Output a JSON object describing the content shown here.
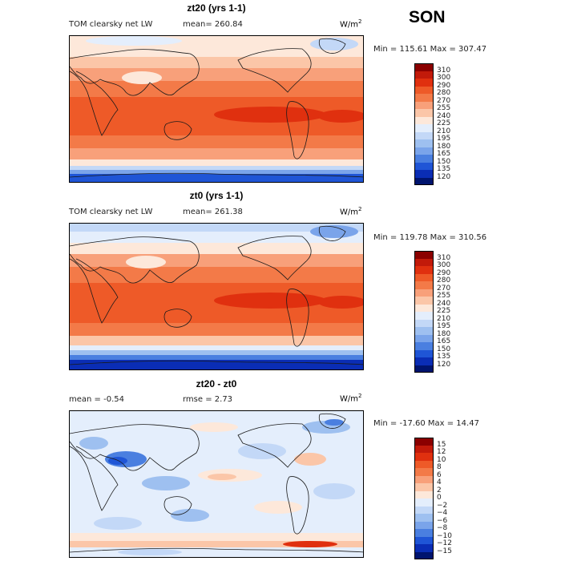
{
  "season": "SON",
  "units": {
    "text": "W/m",
    "sup": "2"
  },
  "palette": {
    "anom_land": "#9ec0f0",
    "coast": "#1a1a1a"
  },
  "panels": [
    {
      "title": "zt20 (yrs 1-1)",
      "variable": "TOM clearsky net LW",
      "stat1": "mean=  260.84",
      "stat2": "",
      "minmax": "Min = 115.61 Max = 307.47",
      "type": "absolute",
      "levels": [
        "310",
        "300",
        "290",
        "280",
        "270",
        "255",
        "240",
        "225",
        "210",
        "195",
        "180",
        "165",
        "150",
        "135",
        "120"
      ],
      "colors": [
        "#8b0000",
        "#c21a0a",
        "#e0300f",
        "#ee5a28",
        "#f37a48",
        "#f8a07a",
        "#fbc6a8",
        "#fde8da",
        "#e4eefc",
        "#c3d8f7",
        "#9ec0f0",
        "#7aa4ea",
        "#4a7fe0",
        "#1f55d6",
        "#0a2db5",
        "#00146e"
      ]
    },
    {
      "title": "zt0 (yrs 1-1)",
      "variable": "TOM clearsky net LW",
      "stat1": "mean=  261.38",
      "stat2": "",
      "minmax": "Min = 119.78 Max = 310.56",
      "type": "absolute",
      "levels": [
        "310",
        "300",
        "290",
        "280",
        "270",
        "255",
        "240",
        "225",
        "210",
        "195",
        "180",
        "165",
        "150",
        "135",
        "120"
      ],
      "colors": [
        "#8b0000",
        "#c21a0a",
        "#e0300f",
        "#ee5a28",
        "#f37a48",
        "#f8a07a",
        "#fbc6a8",
        "#fde8da",
        "#e4eefc",
        "#c3d8f7",
        "#9ec0f0",
        "#7aa4ea",
        "#4a7fe0",
        "#1f55d6",
        "#0a2db5",
        "#00146e"
      ]
    },
    {
      "title": "zt20 - zt0",
      "variable": "mean =   -0.54",
      "stat1": "rmse =    2.73",
      "stat2": "",
      "minmax": "Min = -17.60 Max =  14.47",
      "type": "difference",
      "levels": [
        "15",
        "12",
        "10",
        "8",
        "6",
        "4",
        "2",
        "0",
        "−2",
        "−4",
        "−6",
        "−8",
        "−10",
        "−12",
        "−15"
      ],
      "colors": [
        "#8b0000",
        "#c21a0a",
        "#e0300f",
        "#ee5a28",
        "#f37a48",
        "#f8a07a",
        "#fbc6a8",
        "#fde8da",
        "#e4eefc",
        "#c3d8f7",
        "#9ec0f0",
        "#7aa4ea",
        "#4a7fe0",
        "#1f55d6",
        "#0a2db5",
        "#00146e"
      ]
    }
  ]
}
